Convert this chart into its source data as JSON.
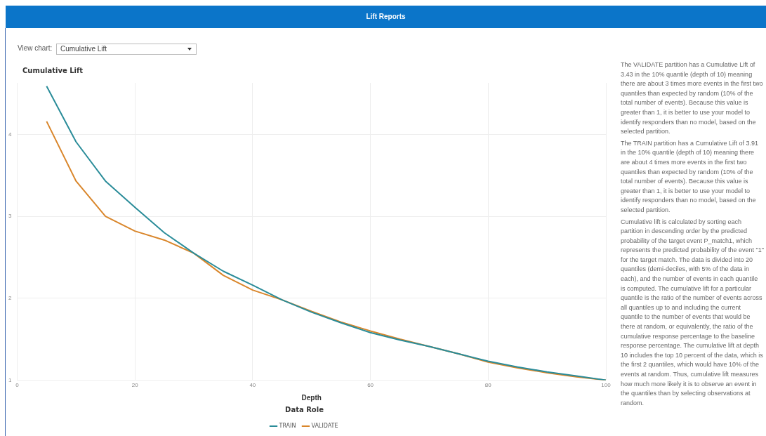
{
  "chart_data": {
    "type": "line",
    "title": "Lift Reports",
    "xlabel": "Depth",
    "ylabel": "Cumulative Lift",
    "legend_title": "Data Role",
    "x": [
      5,
      10,
      15,
      20,
      25,
      30,
      35,
      40,
      45,
      50,
      55,
      60,
      65,
      70,
      75,
      80,
      85,
      90,
      95,
      100
    ],
    "series": [
      {
        "name": "TRAIN",
        "color": "#2a8c99",
        "values": [
          4.59,
          3.91,
          3.43,
          3.11,
          2.8,
          2.55,
          2.33,
          2.16,
          1.98,
          1.83,
          1.7,
          1.58,
          1.49,
          1.41,
          1.32,
          1.23,
          1.16,
          1.1,
          1.05,
          1.0
        ]
      },
      {
        "name": "VALIDATE",
        "color": "#d9862b",
        "values": [
          4.16,
          3.43,
          3.0,
          2.82,
          2.71,
          2.55,
          2.28,
          2.1,
          1.98,
          1.84,
          1.71,
          1.6,
          1.5,
          1.41,
          1.32,
          1.22,
          1.15,
          1.09,
          1.04,
          1.0
        ]
      }
    ],
    "xlim": [
      0,
      100
    ],
    "xticks": [
      0,
      20,
      40,
      60,
      80,
      100
    ],
    "ylim": [
      1,
      4.63
    ],
    "yticks": [
      1,
      2,
      3,
      4
    ],
    "grid": true,
    "legend": "bottom",
    "marker": "none",
    "line_style": "solid",
    "annotations": [
      "View chart:",
      "Cumulative Lift",
      "The VALIDATE partition has a Cumulative Lift of 3.43 in the 10% quantile (depth of 10) meaning there are about 3 times more events in the first two quantiles than expected by random (10% of the total number of events). Because this value is greater than 1, it is better to use your model to identify responders than no model, based on the selected partition.",
      "The TRAIN partition has a Cumulative Lift of 3.91 in the 10% quantile (depth of 10) meaning there are about 4 times more events in the first two quantiles than expected by random (10% of the total number of events). Because this value is greater than 1, it is better to use your model to identify responders than no model, based on the selected partition.",
      "Cumulative lift is calculated by sorting each partition in descending order by the predicted probability of the target event P_match1, which represents the predicted probability of the event \"1\" for the target match. The data is divided into 20 quantiles (demi-deciles, with 5% of the data in each), and the number of events in each quantile is computed. The cumulative lift for a particular quantile is the ratio of the number of events across all quantiles up to and including the current quantile to the number of events that would be there at random, or equivalently, the ratio of the cumulative response percentage to the baseline response percentage. The cumulative lift at depth 10 includes the top 10 percent of the data, which is the first 2 quantiles, which would have 10% of the events at random. Thus, cumulative lift measures how much more likely it is to observe an event in the quantiles than by selecting observations at random."
    ]
  }
}
